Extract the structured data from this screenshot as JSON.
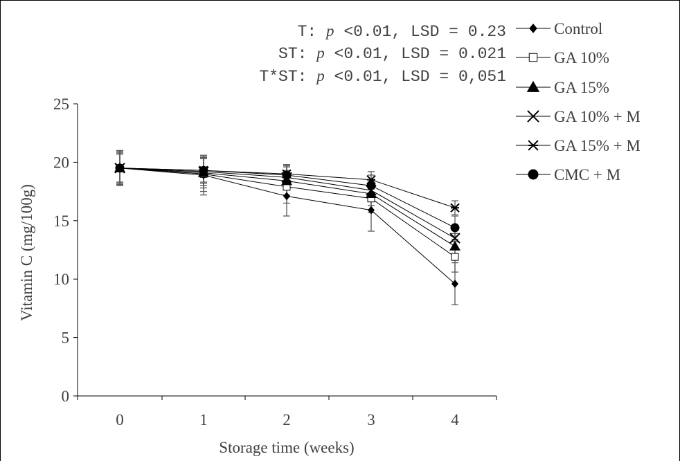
{
  "chart_data": {
    "type": "line",
    "ylabel": "Vitamin C (mg/100g)",
    "xlabel": "Storage time (weeks)",
    "x": [
      0,
      1,
      2,
      3,
      4
    ],
    "x_ticks": [
      "0",
      "1",
      "2",
      "3",
      "4"
    ],
    "ylim": [
      0,
      25
    ],
    "y_ticks": [
      "0",
      "5",
      "10",
      "15",
      "20",
      "25"
    ],
    "grid": false,
    "legend_position": "right",
    "stats": [
      {
        "prefix": "T: ",
        "p": "p",
        "rest": " <0.01, LSD = 0.23"
      },
      {
        "prefix": "ST: ",
        "p": "p",
        "rest": " <0.01, LSD = 0.021"
      },
      {
        "prefix": "T*ST: ",
        "p": "p",
        "rest": " <0.01, LSD = 0,051"
      }
    ],
    "series": [
      {
        "name": "Control",
        "marker": "diamond",
        "values": [
          19.5,
          18.9,
          17.1,
          15.9,
          9.6
        ],
        "errors": [
          1.5,
          1.7,
          1.7,
          1.8,
          1.8
        ]
      },
      {
        "name": "GA 10%",
        "marker": "open-square",
        "values": [
          19.5,
          19.0,
          17.9,
          16.9,
          11.9
        ],
        "errors": [
          1.5,
          1.5,
          1.4,
          1.2,
          1.3
        ]
      },
      {
        "name": "GA 15%",
        "marker": "triangle",
        "values": [
          19.5,
          19.1,
          18.4,
          17.3,
          12.8
        ],
        "errors": [
          1.4,
          1.3,
          1.2,
          1.0,
          1.1
        ]
      },
      {
        "name": "GA 10% + M",
        "marker": "x",
        "values": [
          19.5,
          19.2,
          18.7,
          17.6,
          13.5
        ],
        "errors": [
          1.3,
          1.2,
          1.0,
          0.9,
          1.0
        ]
      },
      {
        "name": "GA 15% + M",
        "marker": "star",
        "values": [
          19.5,
          19.3,
          19.0,
          18.5,
          16.1
        ],
        "errors": [
          1.2,
          1.0,
          0.8,
          0.7,
          0.6
        ]
      },
      {
        "name": "CMC + M",
        "marker": "circle",
        "values": [
          19.5,
          19.3,
          18.9,
          18.0,
          14.4
        ],
        "errors": [
          1.2,
          1.1,
          0.9,
          0.9,
          1.0
        ]
      }
    ]
  }
}
